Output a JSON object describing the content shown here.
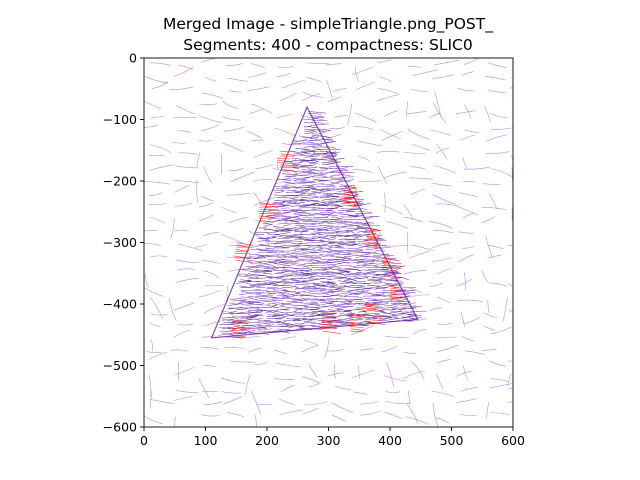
{
  "chart_data": {
    "type": "scatter",
    "title_lines": [
      "Merged Image - simpleTriangle.png_POST_",
      "Segments: 400 - compactness: SLIC0"
    ],
    "xlabel": "",
    "ylabel": "",
    "xlim": [
      0,
      600
    ],
    "ylim": [
      -600,
      0
    ],
    "x_ticks": [
      0,
      100,
      200,
      300,
      400,
      500,
      600
    ],
    "y_ticks": [
      0,
      -100,
      -200,
      -300,
      -400,
      -500,
      -600
    ],
    "x_tick_labels": [
      "0",
      "100",
      "200",
      "300",
      "400",
      "500",
      "600"
    ],
    "y_tick_labels": [
      "0",
      "−100",
      "−200",
      "−300",
      "−400",
      "−500",
      "−600"
    ],
    "grid": false,
    "legend": "none",
    "colors": {
      "background_strokes": "#b07ad8",
      "triangle_strokes": "#7a35b8",
      "dense_strokes": "#5c1f9a",
      "highlight_strokes": "#ff2a2a"
    },
    "triangle_vertices": [
      [
        265,
        -80
      ],
      [
        110,
        -455
      ],
      [
        445,
        -425
      ]
    ],
    "highlight_regions": [
      {
        "x": 232,
        "y": -167
      },
      {
        "x": 335,
        "y": -225
      },
      {
        "x": 200,
        "y": -250
      },
      {
        "x": 372,
        "y": -290
      },
      {
        "x": 160,
        "y": -315
      },
      {
        "x": 400,
        "y": -340
      },
      {
        "x": 410,
        "y": -385
      },
      {
        "x": 155,
        "y": -440
      },
      {
        "x": 300,
        "y": -430
      },
      {
        "x": 345,
        "y": -430
      },
      {
        "x": 370,
        "y": -415
      }
    ]
  }
}
